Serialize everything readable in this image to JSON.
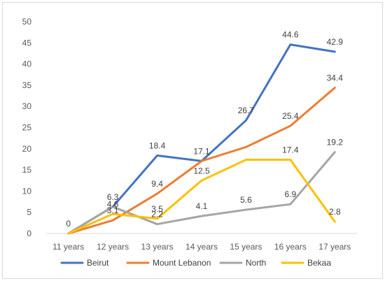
{
  "chart_data": {
    "type": "line",
    "categories": [
      "11 years",
      "12 years",
      "13 years",
      "14 years",
      "15 years",
      "16 years",
      "17 years"
    ],
    "ylim": [
      0,
      50
    ],
    "yticks": [
      0,
      5,
      10,
      15,
      20,
      25,
      30,
      35,
      40,
      45,
      50
    ],
    "grid": false,
    "legend_position": "bottom",
    "series": [
      {
        "name": "Beirut",
        "color": "#4472C4",
        "values": [
          0,
          6.3,
          18.4,
          17.1,
          26.7,
          44.6,
          42.9
        ],
        "labels": [
          "0",
          "6.3",
          "18.4",
          "17.1",
          "26.7",
          "44.6",
          "42.9"
        ]
      },
      {
        "name": "Mount Lebanon",
        "color": "#ED7D31",
        "values": [
          0,
          3.1,
          9.4,
          17.1,
          20.4,
          25.4,
          34.4
        ],
        "labels": [
          "",
          "3.1",
          "9.4",
          "",
          "",
          "25.4",
          "34.4"
        ]
      },
      {
        "name": "North",
        "color": "#A5A5A5",
        "values": [
          0,
          6.3,
          2.2,
          4.1,
          5.6,
          6.9,
          19.2
        ],
        "labels": [
          "",
          "",
          "2.2",
          "4.1",
          "5.6",
          "6.9",
          "19.2"
        ]
      },
      {
        "name": "Bekaa",
        "color": "#FFC000",
        "values": [
          0,
          4.6,
          3.5,
          12.5,
          17.4,
          17.4,
          2.8
        ],
        "labels": [
          "",
          "4.6",
          "3.5",
          "12.5",
          "",
          "17.4",
          "2.8"
        ]
      }
    ]
  }
}
